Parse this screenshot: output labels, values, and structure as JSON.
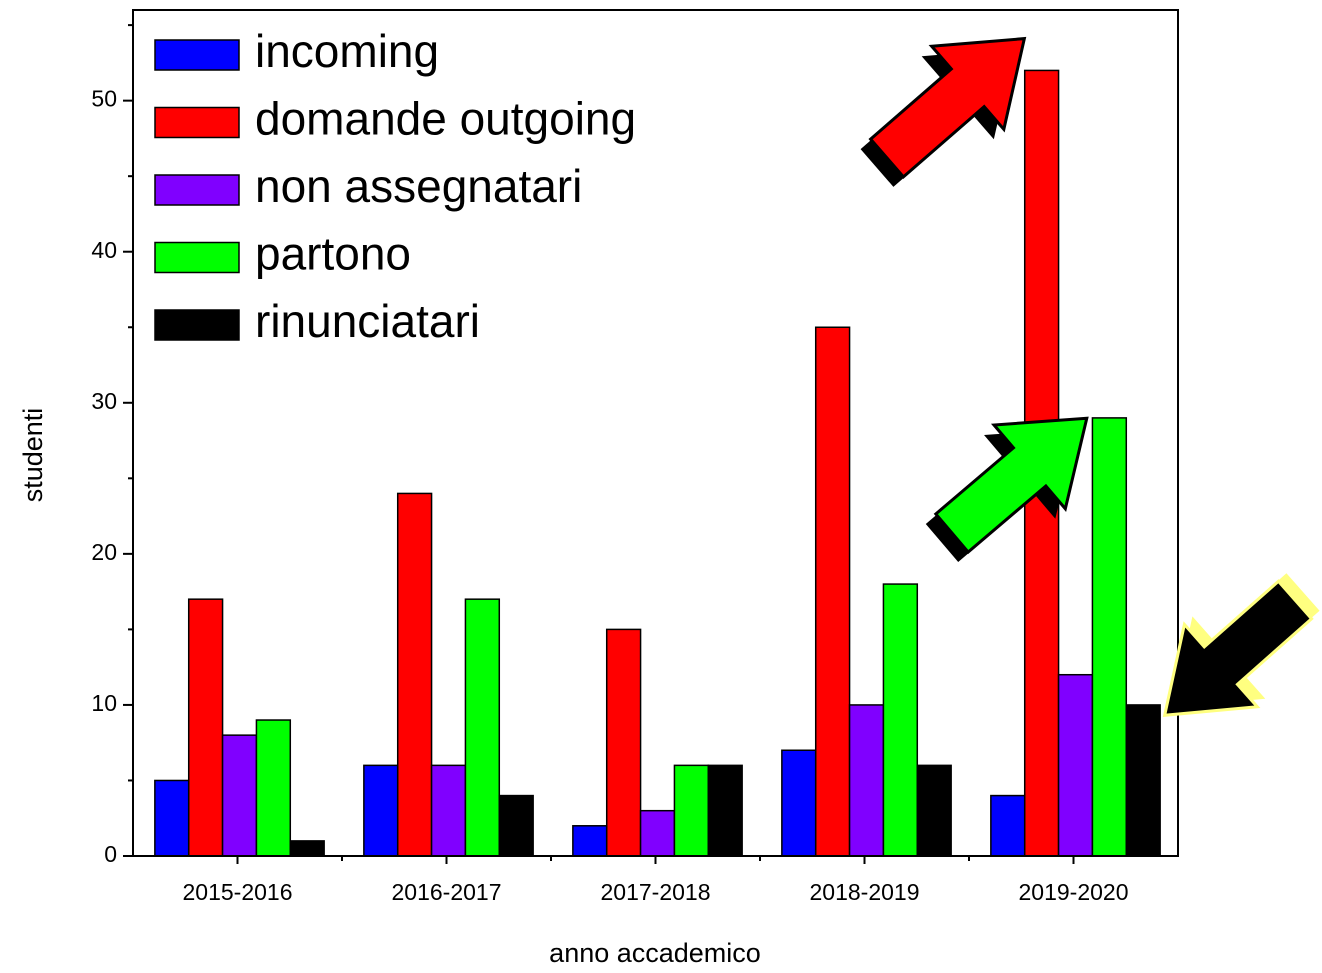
{
  "chart_data": {
    "type": "bar",
    "x_label": "anno accademico",
    "y_label": "studenti",
    "categories": [
      "2015-2016",
      "2016-2017",
      "2017-2018",
      "2018-2019",
      "2019-2020"
    ],
    "series": [
      {
        "name": "incoming",
        "color": "#0000ff",
        "values": [
          5,
          6,
          2,
          7,
          4
        ]
      },
      {
        "name": "domande outgoing",
        "color": "#ff0000",
        "values": [
          17,
          24,
          15,
          35,
          52
        ]
      },
      {
        "name": "non assegnatari",
        "color": "#8000ff",
        "values": [
          8,
          6,
          3,
          10,
          12
        ]
      },
      {
        "name": "partono",
        "color": "#00ff00",
        "values": [
          9,
          17,
          6,
          18,
          29
        ]
      },
      {
        "name": "rinunciatari",
        "color": "#000000",
        "values": [
          1,
          4,
          6,
          6,
          10
        ]
      }
    ],
    "ylim": [
      0,
      56
    ],
    "yticks": [
      0,
      10,
      20,
      30,
      40,
      50
    ],
    "grid": false,
    "legend": "upper left"
  }
}
